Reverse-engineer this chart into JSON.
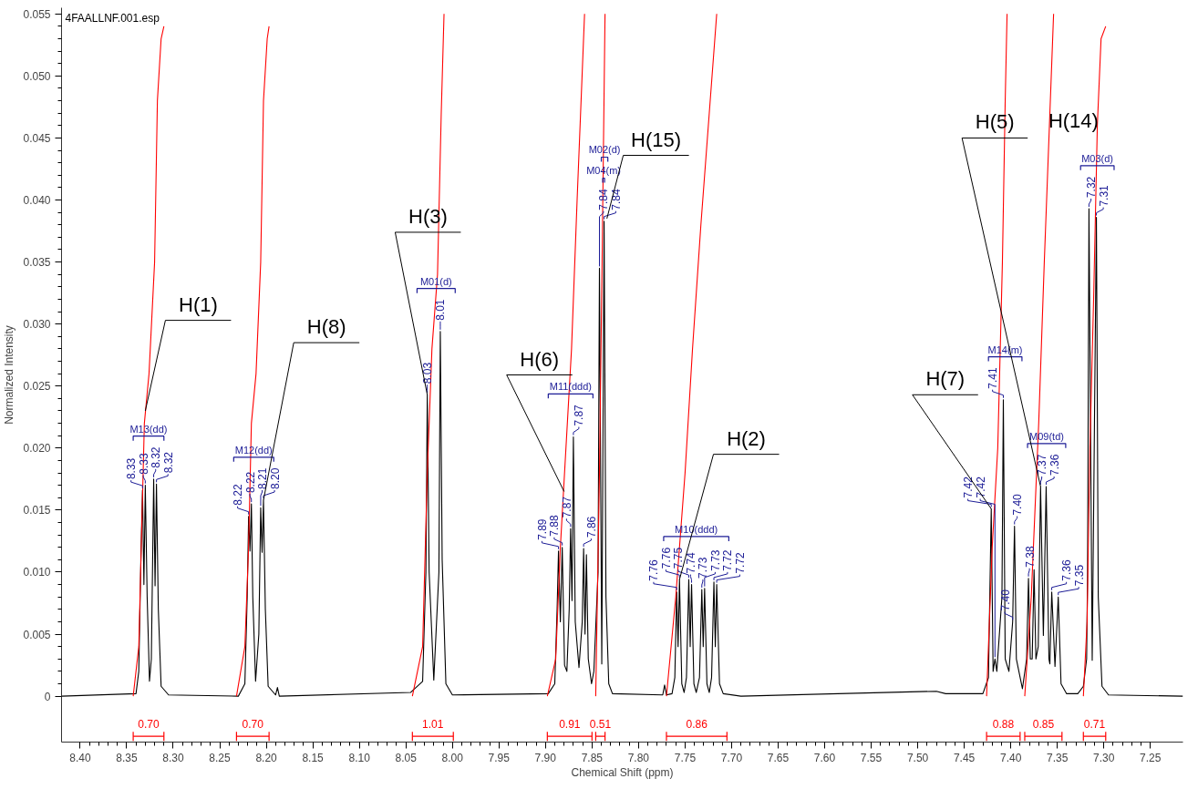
{
  "chart_data": {
    "type": "line",
    "xlabel": "Chemical Shift (ppm)",
    "ylabel": "Normalized Intensity",
    "xlim": [
      8.42,
      7.215
    ],
    "ylim": [
      -0.0037,
      0.0555
    ],
    "xticks": [
      {
        "value": 8.4,
        "label": "8.40"
      },
      8.35,
      {
        "value": 8.3,
        "label": "8.30"
      },
      8.25,
      {
        "value": 8.2,
        "label": "8.20"
      },
      8.15,
      {
        "value": 8.1,
        "label": "8.10"
      },
      8.05,
      {
        "value": 8.0,
        "label": "8.00"
      },
      7.95,
      {
        "value": 7.9,
        "label": "7.90"
      },
      7.85,
      {
        "value": 7.8,
        "label": "7.80"
      },
      7.75,
      {
        "value": 7.7,
        "label": "7.70"
      },
      7.65,
      {
        "value": 7.6,
        "label": "7.60"
      },
      7.55,
      {
        "value": 7.5,
        "label": "7.50"
      },
      7.45,
      {
        "value": 7.4,
        "label": "7.40"
      },
      7.35,
      {
        "value": 7.3,
        "label": "7.30"
      },
      7.25
    ],
    "yticks": [
      0,
      0.005,
      {
        "value": 0.01,
        "label": "0.010"
      },
      0.015,
      {
        "value": 0.02,
        "label": "0.020"
      },
      0.025,
      {
        "value": 0.03,
        "label": "0.030"
      },
      0.035,
      {
        "value": 0.04,
        "label": "0.040"
      },
      0.045,
      {
        "value": 0.05,
        "label": "0.050"
      },
      0.055
    ],
    "grid": false,
    "series": [
      {
        "color": "#000000",
        "x": [
          8.42,
          8.34,
          8.337,
          8.3345,
          8.333,
          8.3315,
          8.33,
          8.328,
          8.3255,
          8.3235,
          8.321,
          8.3195,
          8.318,
          8.316,
          8.313,
          8.305,
          8.23,
          8.223,
          8.2205,
          8.219,
          8.2175,
          8.216,
          8.2145,
          8.2115,
          8.208,
          8.206,
          8.2045,
          8.203,
          8.201,
          8.198,
          8.19,
          8.188,
          8.186,
          8.045,
          8.032,
          8.0285,
          8.027,
          8.025,
          8.02,
          8.0145,
          8.013,
          8.011,
          8.007,
          8.0,
          7.897,
          7.89,
          7.8875,
          7.886,
          7.884,
          7.882,
          7.8795,
          7.877,
          7.8745,
          7.873,
          7.8715,
          7.87,
          7.868,
          7.864,
          7.8605,
          7.859,
          7.8575,
          7.856,
          7.854,
          7.8505,
          7.848,
          7.8435,
          7.842,
          7.8395,
          7.837,
          7.835,
          7.832,
          7.828,
          7.774,
          7.772,
          7.77,
          7.764,
          7.761,
          7.759,
          7.7575,
          7.756,
          7.7535,
          7.751,
          7.7485,
          7.746,
          7.7445,
          7.743,
          7.7405,
          7.738,
          7.7345,
          7.732,
          7.7305,
          7.729,
          7.7265,
          7.724,
          7.7215,
          7.719,
          7.7175,
          7.716,
          7.713,
          7.709,
          7.69,
          7.48,
          7.47,
          7.43,
          7.424,
          7.421,
          7.419,
          7.417,
          7.415,
          7.4095,
          7.408,
          7.406,
          7.402,
          7.398,
          7.396,
          7.394,
          7.3875,
          7.383,
          7.381,
          7.379,
          7.377,
          7.375,
          7.373,
          7.3705,
          7.368,
          7.365,
          7.362,
          7.359,
          7.358,
          7.356,
          7.3525,
          7.349,
          7.346,
          7.34,
          7.328,
          7.322,
          7.3185,
          7.3175,
          7.316,
          7.3125,
          7.308,
          7.306,
          7.302,
          7.295,
          7.215
        ],
        "values": [
          0,
          0.0002,
          0.002,
          0.012,
          0.0166,
          0.009,
          0.017,
          0.008,
          0.0012,
          0.003,
          0.0175,
          0.0089,
          0.0171,
          0.007,
          0.0008,
          0.0001,
          0,
          0.001,
          0.008,
          0.0145,
          0.0117,
          0.0155,
          0.008,
          0.0012,
          0.005,
          0.0152,
          0.0116,
          0.0158,
          0.007,
          0.0008,
          0.0001,
          0.0007,
          0,
          0.0003,
          0.0012,
          0.01,
          0.0243,
          0.01,
          0.0013,
          0.01,
          0.0294,
          0.011,
          0.001,
          0.0001,
          0.0002,
          0.001,
          0.007,
          0.0117,
          0.006,
          0.012,
          0.0025,
          0.002,
          0.007,
          0.0135,
          0.0077,
          0.0209,
          0.006,
          0.0023,
          0.006,
          0.0119,
          0.005,
          0.0114,
          0.003,
          0.001,
          0.002,
          0.01,
          0.0345,
          0.0026,
          0.0383,
          0.008,
          0.001,
          0.0002,
          0.0001,
          0.0009,
          0.0001,
          0.0002,
          0.0015,
          0.0084,
          0.004,
          0.0094,
          0.001,
          0.0003,
          0.0015,
          0.0094,
          0.004,
          0.009,
          0.001,
          0.0003,
          0.0015,
          0.0086,
          0.004,
          0.0087,
          0.001,
          0.0003,
          0.0015,
          0.0092,
          0.004,
          0.009,
          0.001,
          0.0002,
          0,
          0.0004,
          0.0002,
          0.0002,
          0.0015,
          0.0151,
          0.002,
          0.003,
          0.002,
          0.008,
          0.0239,
          0.003,
          0.002,
          0.006,
          0.0137,
          0.003,
          0.0006,
          0.003,
          0.0095,
          0.003,
          0.003,
          0.0102,
          0.003,
          0.004,
          0.0169,
          0.0049,
          0.0169,
          0.003,
          0.0026,
          0.0084,
          0.0024,
          0.008,
          0.001,
          0.0002,
          0.0002,
          0.0008,
          0.003,
          0.01,
          0.0393,
          0.0029,
          0.0386,
          0.008,
          0.0008,
          0.0001,
          0
        ]
      },
      {
        "color": "#ff0000",
        "x": [
          8.343,
          8.337,
          8.334,
          8.331,
          8.326,
          8.32,
          8.317,
          8.313,
          8.31
        ],
        "values": [
          0,
          0.004,
          0.013,
          0.022,
          0.026,
          0.035,
          0.048,
          0.053,
          0.054
        ]
      },
      {
        "color": "#ff0000",
        "x": [
          8.232,
          8.223,
          8.219,
          8.216,
          8.211,
          8.206,
          8.203,
          8.199,
          8.197
        ],
        "values": [
          0,
          0.004,
          0.012,
          0.022,
          0.026,
          0.035,
          0.048,
          0.053,
          0.054
        ]
      },
      {
        "color": "#ff0000",
        "x": [
          8.043,
          8.032,
          8.027,
          8.022,
          8.016,
          8.012,
          8.009
        ],
        "values": [
          0,
          0.004,
          0.018,
          0.028,
          0.034,
          0.047,
          0.055
        ]
      },
      {
        "color": "#ff0000",
        "x": [
          7.898,
          7.889,
          7.884,
          7.878,
          7.872,
          7.866,
          7.858
        ],
        "values": [
          0,
          0.003,
          0.012,
          0.02,
          0.028,
          0.04,
          0.055
        ]
      },
      {
        "color": "#ff0000",
        "x": [
          7.846,
          7.842,
          7.839,
          7.836
        ],
        "values": [
          0,
          0.018,
          0.036,
          0.055
        ]
      },
      {
        "color": "#ff0000",
        "x": [
          7.77,
          7.76,
          7.75,
          7.742,
          7.733,
          7.724,
          7.716
        ],
        "values": [
          0,
          0.008,
          0.018,
          0.028,
          0.038,
          0.047,
          0.055
        ]
      },
      {
        "color": "#ff0000",
        "x": [
          7.426,
          7.42,
          7.414,
          7.409,
          7.406,
          7.404
        ],
        "values": [
          0,
          0.012,
          0.02,
          0.035,
          0.048,
          0.055
        ]
      },
      {
        "color": "#ff0000",
        "x": [
          7.385,
          7.378,
          7.37,
          7.364,
          7.358,
          7.354
        ],
        "values": [
          0,
          0.008,
          0.022,
          0.035,
          0.047,
          0.055
        ]
      },
      {
        "color": "#ff0000",
        "x": [
          7.322,
          7.318,
          7.315,
          7.311,
          7.307,
          7.303,
          7.298
        ],
        "values": [
          0,
          0.006,
          0.02,
          0.032,
          0.046,
          0.053,
          0.054
        ]
      }
    ],
    "annotations": [
      "4FAALLNF.001.esp",
      "M13(dd)",
      "M12(dd)",
      "M01(d)",
      "M11(ddd)",
      "M04(m)",
      "M02(d)",
      "M10(ddd)",
      "M14(m)",
      "M09(td)",
      "M03(d)",
      "0.70",
      "0.70",
      "1.01",
      "0.91",
      "0.51",
      "0.86",
      "0.88",
      "0.85",
      "0.71",
      {
        "text": "H(1)",
        "x": 8.33,
        "y": 0.023
      },
      {
        "text": "H(8)",
        "x": 8.203,
        "y": 0.0158
      },
      {
        "text": "H(3)",
        "x": 8.027,
        "y": 0.0243
      },
      {
        "text": "H(6)",
        "x": 7.88,
        "y": 0.0165
      },
      {
        "text": "H(15)",
        "x": 7.834,
        "y": 0.0385
      },
      {
        "text": "H(2)",
        "x": 7.756,
        "y": 0.0094
      },
      {
        "text": "H(7)",
        "x": 7.421,
        "y": 0.0151
      },
      {
        "text": "H(5)",
        "x": 7.368,
        "y": 0.0169
      },
      "H(14)",
      {
        "text": "8.33",
        "x": 8.333,
        "y": 0.0166
      },
      {
        "text": "8.33",
        "x": 8.33,
        "y": 0.017
      },
      {
        "text": "8.32",
        "x": 8.321,
        "y": 0.0175
      },
      {
        "text": "8.32",
        "x": 8.318,
        "y": 0.0171
      },
      {
        "text": "8.22",
        "x": 8.219,
        "y": 0.0145
      },
      {
        "text": "8.22",
        "x": 8.216,
        "y": 0.0155
      },
      {
        "text": "8.21",
        "x": 8.206,
        "y": 0.0152
      },
      {
        "text": "8.20",
        "x": 8.203,
        "y": 0.0158
      },
      {
        "text": "8.03",
        "x": 8.027,
        "y": 0.0243
      },
      {
        "text": "8.01",
        "x": 8.013,
        "y": 0.0294
      },
      {
        "text": "7.89",
        "x": 7.886,
        "y": 0.0117
      },
      {
        "text": "7.88",
        "x": 7.882,
        "y": 0.012
      },
      {
        "text": "7.87",
        "x": 7.873,
        "y": 0.0135
      },
      {
        "text": "7.87",
        "x": 7.87,
        "y": 0.0209
      },
      {
        "text": "7.86",
        "x": 7.859,
        "y": 0.0119
      },
      {
        "text": "7.84",
        "x": 7.842,
        "y": 0.0345
      },
      {
        "text": "7.84",
        "x": 7.837,
        "y": 0.0383
      },
      {
        "text": "7.76",
        "x": 7.759,
        "y": 0.0084
      },
      {
        "text": "7.76",
        "x": 7.756,
        "y": 0.0094
      },
      {
        "text": "7.75",
        "x": 7.746,
        "y": 0.0094
      },
      {
        "text": "7.74",
        "x": 7.743,
        "y": 0.009
      },
      {
        "text": "7.73",
        "x": 7.732,
        "y": 0.0086
      },
      {
        "text": "7.73",
        "x": 7.729,
        "y": 0.0087
      },
      {
        "text": "7.72",
        "x": 7.719,
        "y": 0.0092
      },
      {
        "text": "7.72",
        "x": 7.716,
        "y": 0.009
      },
      {
        "text": "7.42",
        "x": 7.421,
        "y": 0.0151
      },
      {
        "text": "7.42",
        "x": 7.417,
        "y": 0.003
      },
      {
        "text": "7.41",
        "x": 7.408,
        "y": 0.0239
      },
      {
        "text": "7.40",
        "x": 7.398,
        "y": 0.006
      },
      {
        "text": "7.40",
        "x": 7.396,
        "y": 0.0137
      },
      {
        "text": "7.38",
        "x": 7.381,
        "y": 0.0095
      },
      {
        "text": "7.37",
        "x": 7.368,
        "y": 0.0169
      },
      {
        "text": "7.36",
        "x": 7.362,
        "y": 0.0169
      },
      {
        "text": "7.36",
        "x": 7.356,
        "y": 0.0084
      },
      {
        "text": "7.35",
        "x": 7.349,
        "y": 0.008
      },
      {
        "text": "7.32",
        "x": 7.316,
        "y": 0.0393
      },
      {
        "text": "7.31",
        "x": 7.308,
        "y": 0.0386
      }
    ]
  }
}
